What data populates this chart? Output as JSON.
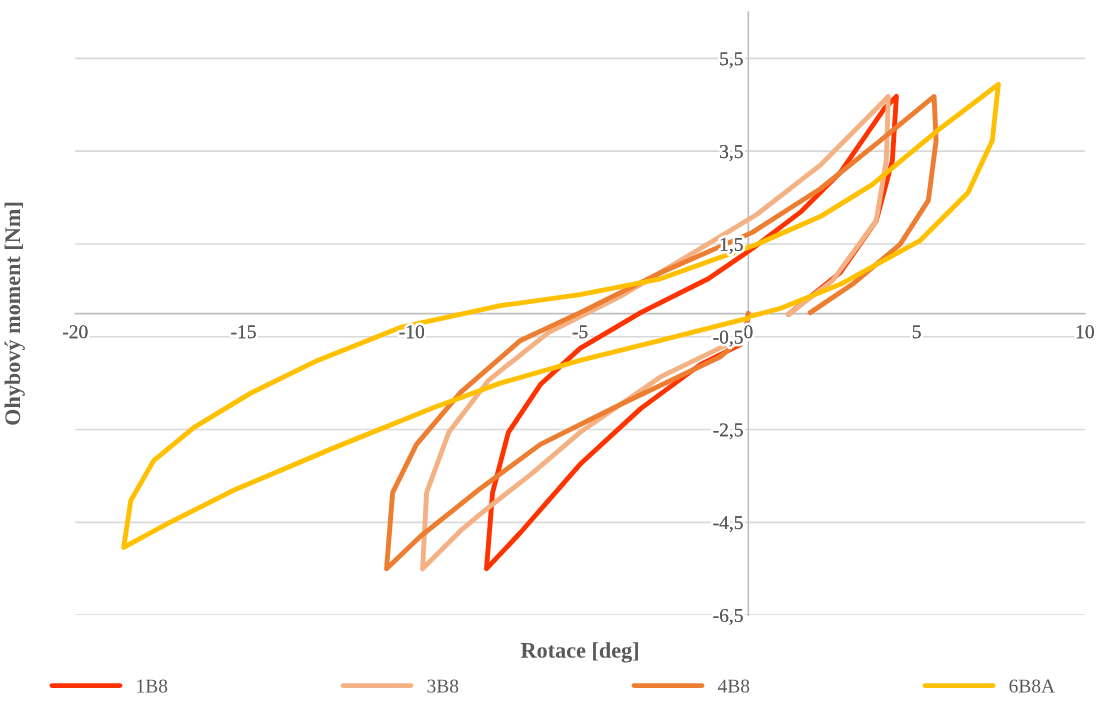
{
  "chart_data": {
    "type": "line",
    "xlabel": "Rotace [deg]",
    "ylabel": "Ohybový moment [Nm]",
    "xlim": [
      -20,
      10
    ],
    "ylim": [
      -6.5,
      6.5
    ],
    "xticks": [
      -20,
      -15,
      -10,
      -5,
      0,
      5,
      10
    ],
    "yticks": [
      {
        "value": -6.5,
        "label": "-6,5"
      },
      {
        "value": -4.5,
        "label": "-4,5"
      },
      {
        "value": -2.5,
        "label": "-2,5"
      },
      {
        "value": -0.5,
        "label": "-0,5"
      },
      {
        "value": 1.5,
        "label": "1,5"
      },
      {
        "value": 3.5,
        "label": "3,5"
      },
      {
        "value": 5.5,
        "label": "5,5"
      }
    ],
    "grid": "y",
    "legend": "bottom",
    "marker": "none",
    "line_style": "solid",
    "series": [
      {
        "name": "1B8",
        "color": "#ff3300",
        "x": [
          0,
          -0.05,
          -0.24,
          -1.43,
          -3.2,
          -5.0,
          -6.77,
          -7.78,
          -7.6,
          -7.13,
          -6.18,
          -5.0,
          -3.2,
          -1.19,
          0.12,
          1.54,
          2.73,
          4.04,
          4.4,
          4.28,
          3.8,
          2.73,
          1.19
        ],
        "values": [
          0,
          -0.3,
          -0.67,
          -1.1,
          -2.05,
          -3.25,
          -4.72,
          -5.5,
          -3.86,
          -2.56,
          -1.53,
          -0.75,
          0.02,
          0.75,
          1.4,
          2.18,
          3.04,
          4.42,
          4.68,
          3.3,
          2.0,
          0.88,
          -0.02
        ]
      },
      {
        "name": "3B8",
        "color": "#f4b183",
        "x": [
          0,
          -0.05,
          -0.3,
          -1.0,
          -2.6,
          -5.0,
          -6.4,
          -7.84,
          -8.55,
          -9.68,
          -9.56,
          -8.9,
          -7.72,
          -5.94,
          -3.8,
          -1.43,
          0.24,
          2.14,
          4.16,
          4.1,
          3.8,
          2.5,
          1.19
        ],
        "values": [
          0,
          -0.3,
          -0.55,
          -0.8,
          -1.36,
          -2.56,
          -3.43,
          -4.25,
          -4.68,
          -5.5,
          -3.86,
          -2.56,
          -1.44,
          -0.41,
          0.37,
          1.4,
          2.13,
          3.2,
          4.68,
          3.3,
          2.0,
          0.71,
          -0.02
        ]
      },
      {
        "name": "4B8",
        "color": "#ed7d31",
        "x": [
          0,
          -0.05,
          -0.3,
          -0.83,
          -3.8,
          -6.18,
          -7.96,
          -9.74,
          -10.75,
          -10.57,
          -9.86,
          -8.55,
          -6.77,
          -5.0,
          -2.61,
          0.12,
          2.14,
          3.92,
          5.52,
          5.58,
          5.35,
          4.51,
          3.09,
          1.84
        ],
        "values": [
          0,
          -0.3,
          -0.6,
          -0.93,
          -1.96,
          -2.82,
          -3.77,
          -4.8,
          -5.5,
          -3.86,
          -2.82,
          -1.7,
          -0.58,
          0.02,
          0.88,
          1.75,
          2.69,
          3.73,
          4.68,
          3.73,
          2.44,
          1.49,
          0.63,
          0.02
        ]
      },
      {
        "name": "6B8A",
        "color": "#ffc000",
        "x": [
          0,
          -2.61,
          -5.0,
          -7.37,
          -9.36,
          -12.3,
          -15.3,
          -17.26,
          -18.56,
          -18.35,
          -17.67,
          -16.48,
          -14.8,
          -12.8,
          -10.34,
          -7.37,
          -5.0,
          -2.61,
          0.24,
          2.14,
          3.68,
          5.7,
          7.43,
          7.25,
          6.53,
          5.1,
          2.73,
          0.95,
          0.1
        ],
        "values": [
          -0.1,
          -0.58,
          -1.01,
          -1.5,
          -2.03,
          -2.89,
          -3.81,
          -4.53,
          -5.04,
          -4.03,
          -3.17,
          -2.46,
          -1.72,
          -1.01,
          -0.3,
          0.17,
          0.41,
          0.75,
          1.49,
          2.09,
          2.78,
          3.99,
          4.94,
          3.73,
          2.61,
          1.57,
          0.63,
          0.11,
          -0.05
        ]
      }
    ]
  }
}
